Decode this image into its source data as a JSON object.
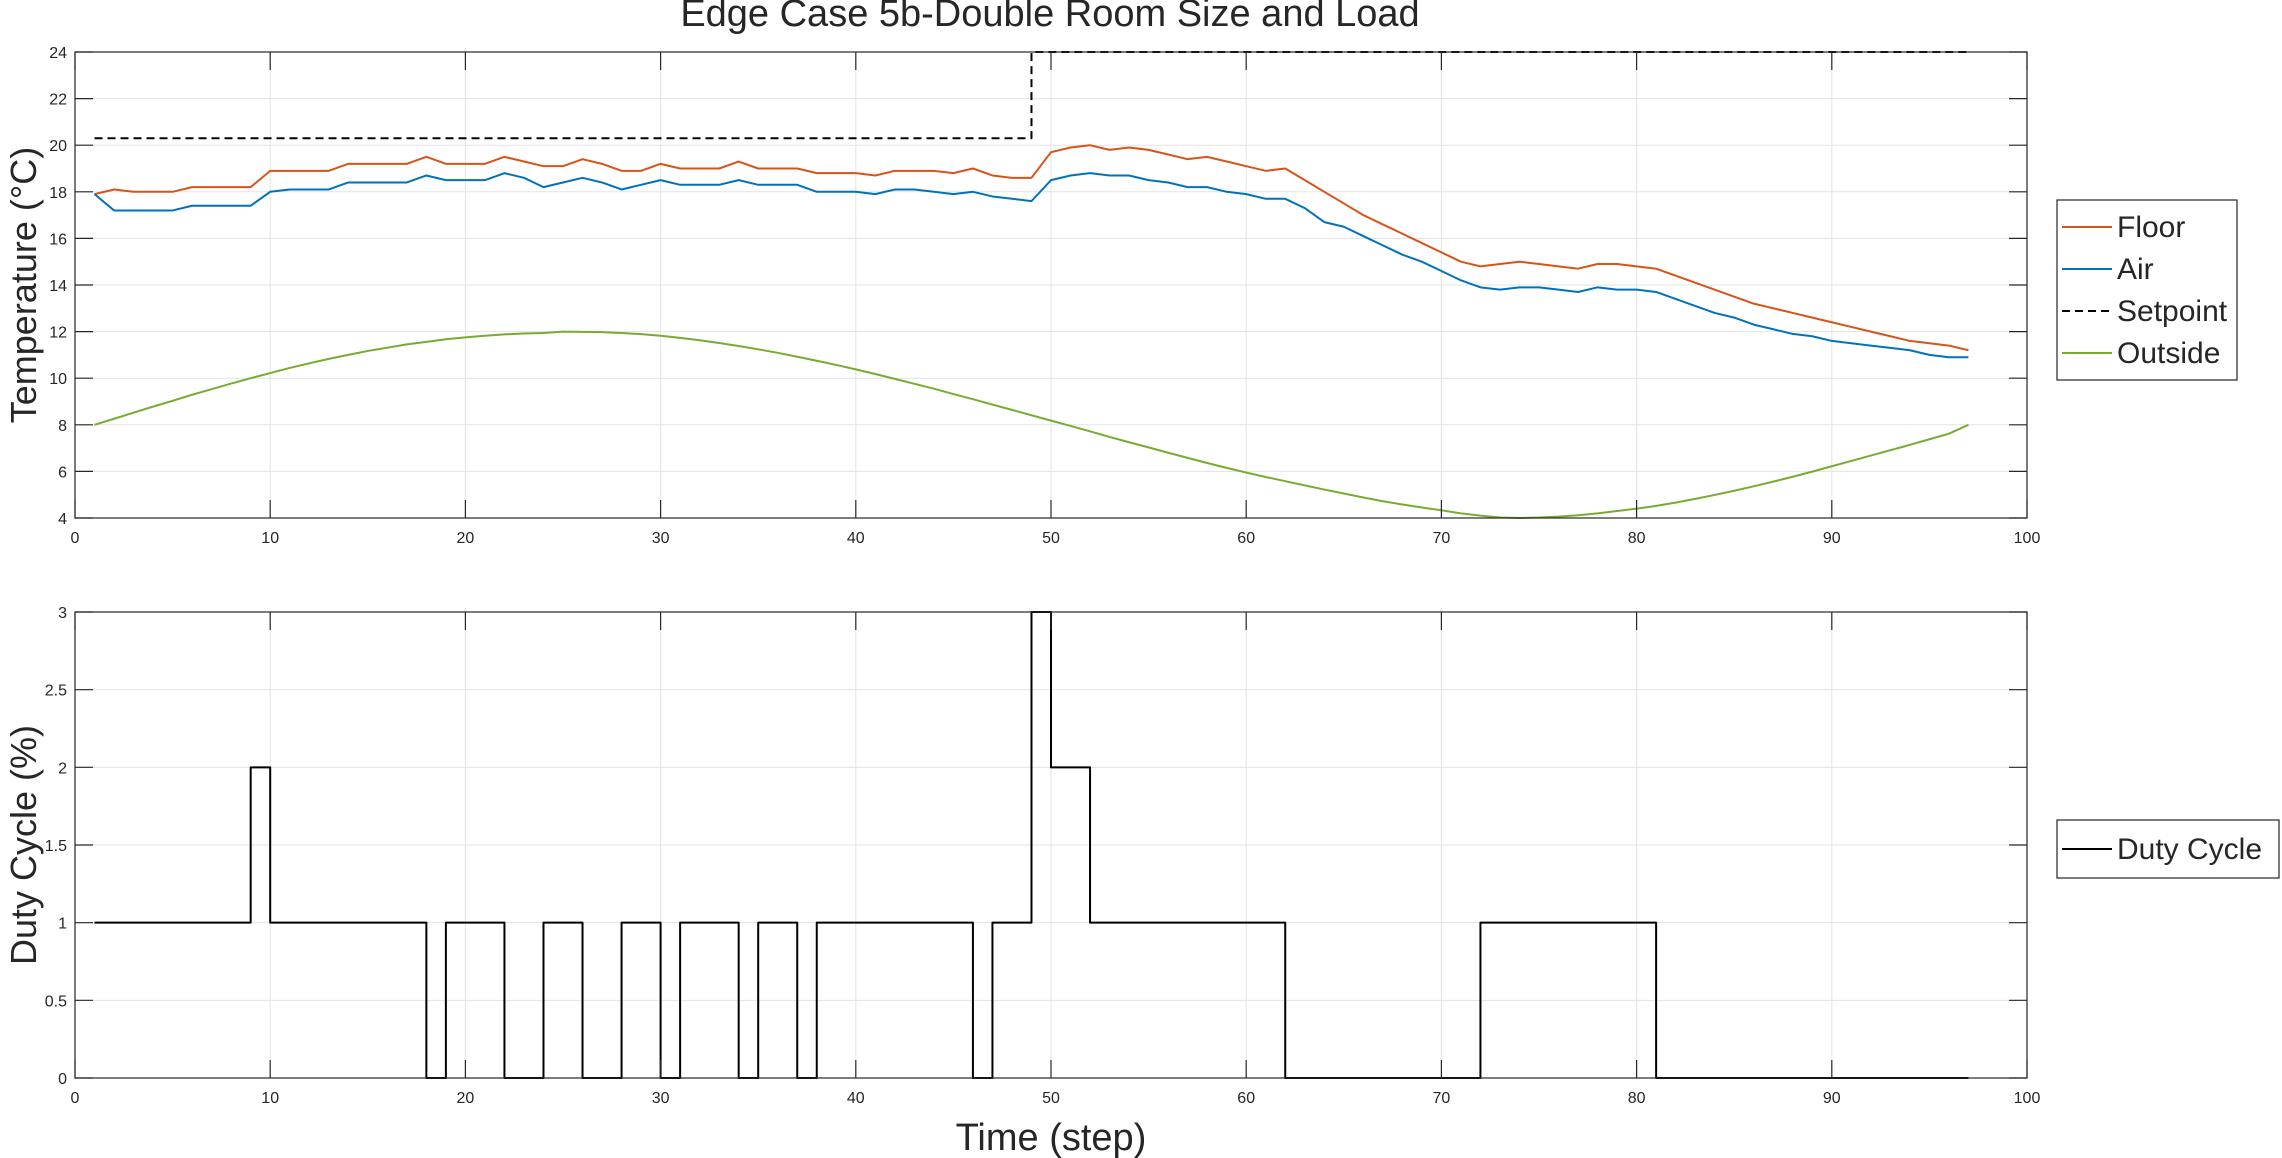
{
  "figure": {
    "title": "Edge Case 5b-Double Room Size and Load"
  },
  "chart_data": [
    {
      "type": "line",
      "title": "Edge Case 5b-Double Room Size and Load",
      "xlabel": "",
      "ylabel": "Temperature (°C)",
      "xlim": [
        0,
        100
      ],
      "ylim": [
        4,
        24
      ],
      "xticks": [
        0,
        10,
        20,
        30,
        40,
        50,
        60,
        70,
        80,
        90,
        100
      ],
      "yticks": [
        4,
        6,
        8,
        10,
        12,
        14,
        16,
        18,
        20,
        22,
        24
      ],
      "grid": true,
      "legend_position": "right",
      "series": [
        {
          "name": "Floor",
          "color": "#D95319",
          "style": "solid",
          "x": [
            1,
            2,
            3,
            4,
            5,
            6,
            7,
            8,
            9,
            10,
            11,
            12,
            13,
            14,
            15,
            16,
            17,
            18,
            19,
            20,
            21,
            22,
            23,
            24,
            25,
            26,
            27,
            28,
            29,
            30,
            31,
            32,
            33,
            34,
            35,
            36,
            37,
            38,
            39,
            40,
            41,
            42,
            43,
            44,
            45,
            46,
            47,
            48,
            49,
            50,
            51,
            52,
            53,
            54,
            55,
            56,
            57,
            58,
            59,
            60,
            61,
            62,
            63,
            64,
            65,
            66,
            67,
            68,
            69,
            70,
            71,
            72,
            73,
            74,
            75,
            76,
            77,
            78,
            79,
            80,
            81,
            82,
            83,
            84,
            85,
            86,
            87,
            88,
            89,
            90,
            91,
            92,
            93,
            94,
            95,
            96,
            97
          ],
          "values": [
            17.9,
            18.1,
            18.0,
            18.0,
            18.0,
            18.2,
            18.2,
            18.2,
            18.2,
            18.9,
            18.9,
            18.9,
            18.9,
            19.2,
            19.2,
            19.2,
            19.2,
            19.5,
            19.2,
            19.2,
            19.2,
            19.5,
            19.3,
            19.1,
            19.1,
            19.4,
            19.2,
            18.9,
            18.9,
            19.2,
            19.0,
            19.0,
            19.0,
            19.3,
            19.0,
            19.0,
            19.0,
            18.8,
            18.8,
            18.8,
            18.7,
            18.9,
            18.9,
            18.9,
            18.8,
            19.0,
            18.7,
            18.6,
            18.6,
            19.7,
            19.9,
            20.0,
            19.8,
            19.9,
            19.8,
            19.6,
            19.4,
            19.5,
            19.3,
            19.1,
            18.9,
            19.0,
            18.5,
            18.0,
            17.5,
            17.0,
            16.6,
            16.2,
            15.8,
            15.4,
            15.0,
            14.8,
            14.9,
            15.0,
            14.9,
            14.8,
            14.7,
            14.9,
            14.9,
            14.8,
            14.7,
            14.4,
            14.1,
            13.8,
            13.5,
            13.2,
            13.0,
            12.8,
            12.6,
            12.4,
            12.2,
            12.0,
            11.8,
            11.6,
            11.5,
            11.4,
            11.2
          ]
        },
        {
          "name": "Air",
          "color": "#0072BD",
          "style": "solid",
          "x": [
            1,
            2,
            3,
            4,
            5,
            6,
            7,
            8,
            9,
            10,
            11,
            12,
            13,
            14,
            15,
            16,
            17,
            18,
            19,
            20,
            21,
            22,
            23,
            24,
            25,
            26,
            27,
            28,
            29,
            30,
            31,
            32,
            33,
            34,
            35,
            36,
            37,
            38,
            39,
            40,
            41,
            42,
            43,
            44,
            45,
            46,
            47,
            48,
            49,
            50,
            51,
            52,
            53,
            54,
            55,
            56,
            57,
            58,
            59,
            60,
            61,
            62,
            63,
            64,
            65,
            66,
            67,
            68,
            69,
            70,
            71,
            72,
            73,
            74,
            75,
            76,
            77,
            78,
            79,
            80,
            81,
            82,
            83,
            84,
            85,
            86,
            87,
            88,
            89,
            90,
            91,
            92,
            93,
            94,
            95,
            96,
            97
          ],
          "values": [
            17.9,
            17.2,
            17.2,
            17.2,
            17.2,
            17.4,
            17.4,
            17.4,
            17.4,
            18.0,
            18.1,
            18.1,
            18.1,
            18.4,
            18.4,
            18.4,
            18.4,
            18.7,
            18.5,
            18.5,
            18.5,
            18.8,
            18.6,
            18.2,
            18.4,
            18.6,
            18.4,
            18.1,
            18.3,
            18.5,
            18.3,
            18.3,
            18.3,
            18.5,
            18.3,
            18.3,
            18.3,
            18.0,
            18.0,
            18.0,
            17.9,
            18.1,
            18.1,
            18.0,
            17.9,
            18.0,
            17.8,
            17.7,
            17.6,
            18.5,
            18.7,
            18.8,
            18.7,
            18.7,
            18.5,
            18.4,
            18.2,
            18.2,
            18.0,
            17.9,
            17.7,
            17.7,
            17.3,
            16.7,
            16.5,
            16.1,
            15.7,
            15.3,
            15.0,
            14.6,
            14.2,
            13.9,
            13.8,
            13.9,
            13.9,
            13.8,
            13.7,
            13.9,
            13.8,
            13.8,
            13.7,
            13.4,
            13.1,
            12.8,
            12.6,
            12.3,
            12.1,
            11.9,
            11.8,
            11.6,
            11.5,
            11.4,
            11.3,
            11.2,
            11.0,
            10.9,
            10.9
          ]
        },
        {
          "name": "Setpoint",
          "color": "#000000",
          "style": "dashed",
          "x": [
            1,
            49,
            49,
            97
          ],
          "values": [
            20.3,
            20.3,
            24.0,
            24.0
          ]
        },
        {
          "name": "Outside",
          "color": "#77AC30",
          "style": "solid",
          "x": [
            1,
            2,
            3,
            4,
            5,
            6,
            7,
            8,
            9,
            10,
            11,
            12,
            13,
            14,
            15,
            16,
            17,
            18,
            19,
            20,
            21,
            22,
            23,
            24,
            25,
            26,
            27,
            28,
            29,
            30,
            31,
            32,
            33,
            34,
            35,
            36,
            37,
            38,
            39,
            40,
            41,
            42,
            43,
            44,
            45,
            46,
            47,
            48,
            49,
            50,
            51,
            52,
            53,
            54,
            55,
            56,
            57,
            58,
            59,
            60,
            61,
            62,
            63,
            64,
            65,
            66,
            67,
            68,
            69,
            70,
            71,
            72,
            73,
            74,
            75,
            76,
            77,
            78,
            79,
            80,
            81,
            82,
            83,
            84,
            85,
            86,
            87,
            88,
            89,
            90,
            91,
            92,
            93,
            94,
            95,
            96,
            97
          ],
          "values": [
            8.0,
            8.26,
            8.52,
            8.78,
            9.03,
            9.29,
            9.53,
            9.77,
            10.0,
            10.22,
            10.44,
            10.64,
            10.83,
            11.0,
            11.17,
            11.31,
            11.45,
            11.56,
            11.67,
            11.75,
            11.82,
            11.88,
            11.92,
            11.94,
            12.0,
            11.99,
            11.98,
            11.94,
            11.89,
            11.82,
            11.73,
            11.63,
            11.51,
            11.38,
            11.24,
            11.09,
            10.92,
            10.75,
            10.57,
            10.38,
            10.18,
            9.97,
            9.76,
            9.55,
            9.32,
            9.1,
            8.87,
            8.64,
            8.41,
            8.18,
            7.95,
            7.72,
            7.48,
            7.25,
            7.03,
            6.8,
            6.58,
            6.36,
            6.15,
            5.95,
            5.76,
            5.58,
            5.4,
            5.22,
            5.05,
            4.88,
            4.72,
            4.58,
            4.45,
            4.33,
            4.2,
            4.1,
            4.02,
            4.0,
            4.02,
            4.06,
            4.12,
            4.2,
            4.3,
            4.4,
            4.52,
            4.66,
            4.82,
            4.99,
            5.17,
            5.36,
            5.56,
            5.77,
            5.99,
            6.22,
            6.45,
            6.68,
            6.91,
            7.14,
            7.38,
            7.62,
            8.0
          ]
        }
      ]
    },
    {
      "type": "line",
      "title": "",
      "xlabel": "Time (step)",
      "ylabel": "Duty Cycle (%)",
      "xlim": [
        0,
        100
      ],
      "ylim": [
        0,
        3
      ],
      "xticks": [
        0,
        10,
        20,
        30,
        40,
        50,
        60,
        70,
        80,
        90,
        100
      ],
      "yticks": [
        0,
        0.5,
        1,
        1.5,
        2,
        2.5,
        3
      ],
      "grid": true,
      "legend_position": "right",
      "series": [
        {
          "name": "Duty Cycle",
          "color": "#000000",
          "style": "stairs",
          "x": [
            1,
            2,
            3,
            4,
            5,
            6,
            7,
            8,
            9,
            10,
            11,
            12,
            13,
            14,
            15,
            16,
            17,
            18,
            19,
            20,
            21,
            22,
            23,
            24,
            25,
            26,
            27,
            28,
            29,
            30,
            31,
            32,
            33,
            34,
            35,
            36,
            37,
            38,
            39,
            40,
            41,
            42,
            43,
            44,
            45,
            46,
            47,
            48,
            49,
            50,
            51,
            52,
            53,
            54,
            55,
            56,
            57,
            58,
            59,
            60,
            61,
            62,
            63,
            64,
            65,
            66,
            67,
            68,
            69,
            70,
            71,
            72,
            73,
            74,
            75,
            76,
            77,
            78,
            79,
            80,
            81,
            82,
            83,
            84,
            85,
            86,
            87,
            88,
            89,
            90,
            91,
            92,
            93,
            94,
            95,
            96
          ],
          "values": [
            1,
            1,
            1,
            1,
            1,
            1,
            1,
            1,
            2,
            1,
            1,
            1,
            1,
            1,
            1,
            1,
            1,
            0,
            1,
            1,
            1,
            0,
            0,
            1,
            1,
            0,
            0,
            1,
            1,
            0,
            1,
            1,
            1,
            0,
            1,
            1,
            0,
            1,
            1,
            1,
            1,
            1,
            1,
            1,
            1,
            0,
            1,
            1,
            3,
            2,
            2,
            1,
            1,
            1,
            1,
            1,
            1,
            1,
            1,
            1,
            1,
            0,
            0,
            0,
            0,
            0,
            0,
            0,
            0,
            0,
            0,
            1,
            1,
            1,
            1,
            1,
            1,
            1,
            1,
            1,
            0,
            0,
            0,
            0,
            0,
            0,
            0,
            0,
            0,
            0,
            0,
            0,
            0,
            0,
            0,
            0
          ]
        }
      ]
    }
  ]
}
